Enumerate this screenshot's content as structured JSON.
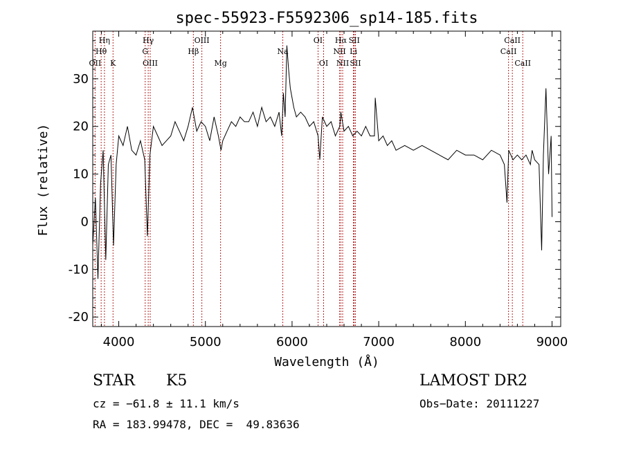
{
  "chart_data": {
    "type": "line",
    "title": "spec-55923-F5592306_sp14-185.fits",
    "xlabel": "Wavelength (Å)",
    "ylabel": "Flux (relative)",
    "xlim": [
      3700,
      9100
    ],
    "ylim": [
      -22,
      40
    ],
    "xticks": [
      4000,
      5000,
      6000,
      7000,
      8000,
      9000
    ],
    "yticks": [
      -20,
      -10,
      0,
      10,
      20,
      30
    ],
    "line_color": "#000000",
    "marker_color": "#b22222",
    "series": [
      {
        "name": "flux",
        "x": [
          3700,
          3730,
          3760,
          3790,
          3820,
          3850,
          3880,
          3910,
          3940,
          3970,
          4000,
          4050,
          4100,
          4150,
          4200,
          4250,
          4300,
          4330,
          4360,
          4400,
          4450,
          4500,
          4550,
          4600,
          4650,
          4700,
          4750,
          4800,
          4850,
          4870,
          4900,
          4950,
          5000,
          5050,
          5100,
          5150,
          5180,
          5200,
          5250,
          5300,
          5350,
          5400,
          5450,
          5500,
          5550,
          5600,
          5650,
          5700,
          5750,
          5800,
          5850,
          5880,
          5900,
          5920,
          5940,
          5960,
          5980,
          6000,
          6020,
          6050,
          6100,
          6150,
          6200,
          6250,
          6300,
          6320,
          6350,
          6400,
          6450,
          6500,
          6550,
          6563,
          6600,
          6650,
          6700,
          6750,
          6800,
          6850,
          6900,
          6950,
          6960,
          7000,
          7050,
          7100,
          7150,
          7200,
          7300,
          7400,
          7500,
          7600,
          7700,
          7800,
          7900,
          8000,
          8100,
          8200,
          8300,
          8400,
          8450,
          8480,
          8500,
          8550,
          8600,
          8650,
          8700,
          8750,
          8770,
          8800,
          8850,
          8880,
          8900,
          8930,
          8960,
          8990,
          9000
        ],
        "y": [
          -5,
          5,
          -12,
          8,
          15,
          -8,
          12,
          14,
          -5,
          12,
          18,
          16,
          20,
          15,
          14,
          17,
          13,
          -3,
          14,
          20,
          18,
          16,
          17,
          18,
          21,
          19,
          17,
          20,
          24,
          22,
          19,
          21,
          20,
          17,
          22,
          18,
          15,
          17,
          19,
          21,
          20,
          22,
          21,
          21,
          23,
          20,
          24,
          21,
          22,
          20,
          23,
          18,
          27,
          22,
          37,
          32,
          28,
          26,
          24,
          22,
          23,
          22,
          20,
          21,
          18,
          13,
          22,
          20,
          21,
          18,
          20,
          23,
          19,
          20,
          18,
          19,
          18,
          20,
          18,
          18,
          26,
          17,
          18,
          16,
          17,
          15,
          16,
          15,
          16,
          15,
          14,
          13,
          15,
          14,
          14,
          13,
          15,
          14,
          12,
          4,
          15,
          13,
          14,
          13,
          14,
          12,
          15,
          13,
          12,
          -6,
          14,
          28,
          10,
          18,
          1
        ]
      }
    ],
    "line_markers": [
      {
        "label": "Hη",
        "wave": 3835,
        "row": 1
      },
      {
        "label": "Hθ",
        "wave": 3797,
        "row": 2
      },
      {
        "label": "OII",
        "wave": 3727,
        "row": 3
      },
      {
        "label": "K",
        "wave": 3934,
        "row": 3
      },
      {
        "label": "Hγ",
        "wave": 4340,
        "row": 1
      },
      {
        "label": "G",
        "wave": 4305,
        "row": 2
      },
      {
        "label": "OIII",
        "wave": 4363,
        "row": 3
      },
      {
        "label": "OIII",
        "wave": 4959,
        "row": 1
      },
      {
        "label": "Hβ",
        "wave": 4861,
        "row": 2
      },
      {
        "label": "Mg",
        "wave": 5175,
        "row": 3
      },
      {
        "label": "Na",
        "wave": 5893,
        "row": 2
      },
      {
        "label": "OI",
        "wave": 6300,
        "row": 1
      },
      {
        "label": "OI",
        "wave": 6364,
        "row": 3
      },
      {
        "label": "Hα",
        "wave": 6563,
        "row": 1
      },
      {
        "label": "NII",
        "wave": 6548,
        "row": 2
      },
      {
        "label": "NII",
        "wave": 6584,
        "row": 3
      },
      {
        "label": "SII",
        "wave": 6717,
        "row": 1
      },
      {
        "label": "Li",
        "wave": 6708,
        "row": 2
      },
      {
        "label": "SII",
        "wave": 6731,
        "row": 3
      },
      {
        "label": "CaII",
        "wave": 8542,
        "row": 1
      },
      {
        "label": "CaII",
        "wave": 8498,
        "row": 2
      },
      {
        "label": "CaII",
        "wave": 8662,
        "row": 3
      }
    ]
  },
  "info": {
    "object_class": "STAR",
    "subclass": "K5",
    "survey": "LAMOST DR2",
    "cz": "cz = −61.8 ± 11.1 km/s",
    "obs_date": "Obs−Date: 20111227",
    "coords": "RA = 183.99478, DEC =  49.83636"
  }
}
